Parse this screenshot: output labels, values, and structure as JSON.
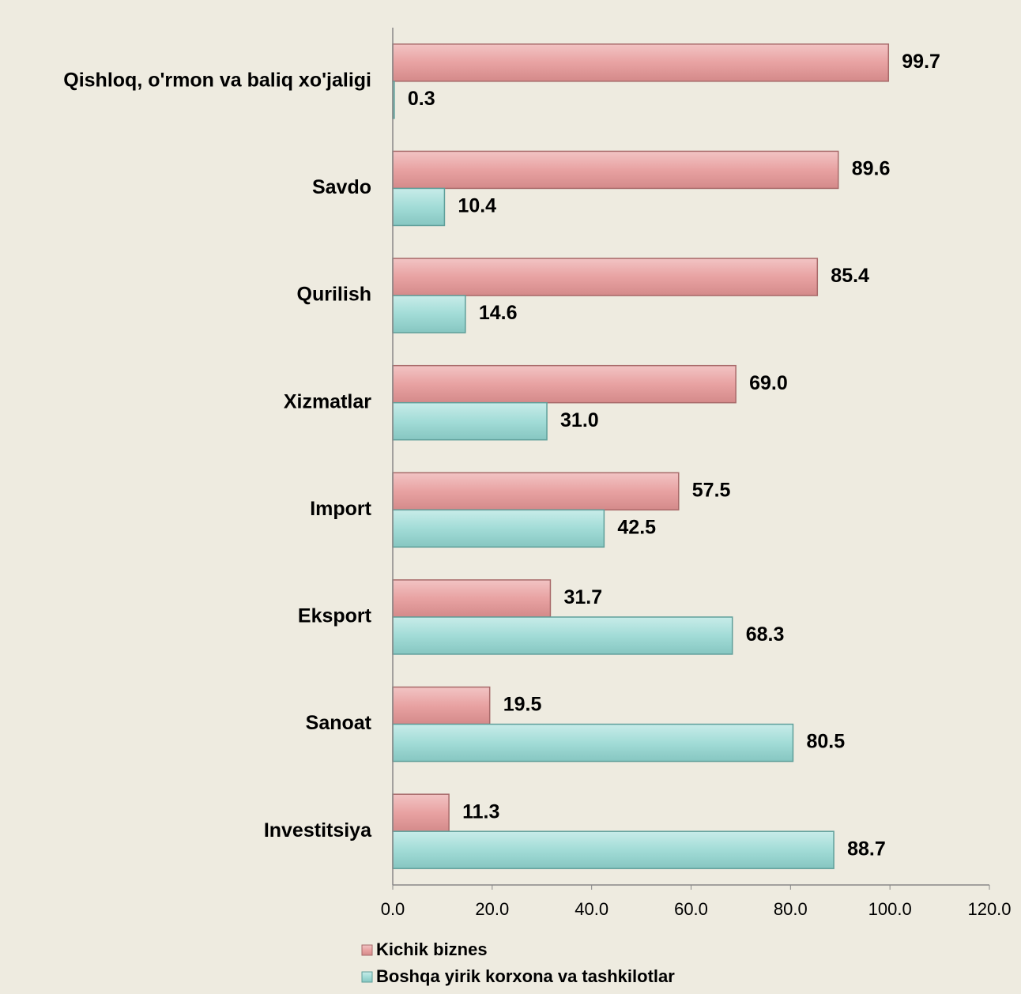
{
  "chart_data": {
    "type": "bar",
    "orientation": "horizontal",
    "categories": [
      "Qishloq, o'rmon va baliq xo'jaligi",
      "Savdo",
      "Qurilish",
      "Xizmatlar",
      "Import",
      "Eksport",
      "Sanoat",
      "Investitsiya"
    ],
    "series": [
      {
        "name": "Kichik biznes",
        "color": "#e8a2a2",
        "values": [
          99.7,
          89.6,
          85.4,
          69.0,
          57.5,
          31.7,
          19.5,
          11.3
        ],
        "value_labels": [
          "99.7",
          "89.6",
          "85.4",
          "69.0",
          "57.5",
          "31.7",
          "19.5",
          "11.3"
        ]
      },
      {
        "name": "Boshqa yirik korxona va tashkilotlar",
        "color": "#a2dcd7",
        "values": [
          0.3,
          10.4,
          14.6,
          31.0,
          42.5,
          68.3,
          80.5,
          88.7
        ],
        "value_labels": [
          "0.3",
          "10.4",
          "14.6",
          "31.0",
          "42.5",
          "68.3",
          "80.5",
          "88.7"
        ]
      }
    ],
    "xlim": [
      0,
      120
    ],
    "xticks": [
      {
        "value": 0,
        "label": "0.0"
      },
      {
        "value": 20,
        "label": "20.0"
      },
      {
        "value": 40,
        "label": "40.0"
      },
      {
        "value": 60,
        "label": "60.0"
      },
      {
        "value": 80,
        "label": "80.0"
      },
      {
        "value": 100,
        "label": "100.0"
      },
      {
        "value": 120,
        "label": "120.0"
      }
    ],
    "legend": "bottom",
    "grid": false
  }
}
